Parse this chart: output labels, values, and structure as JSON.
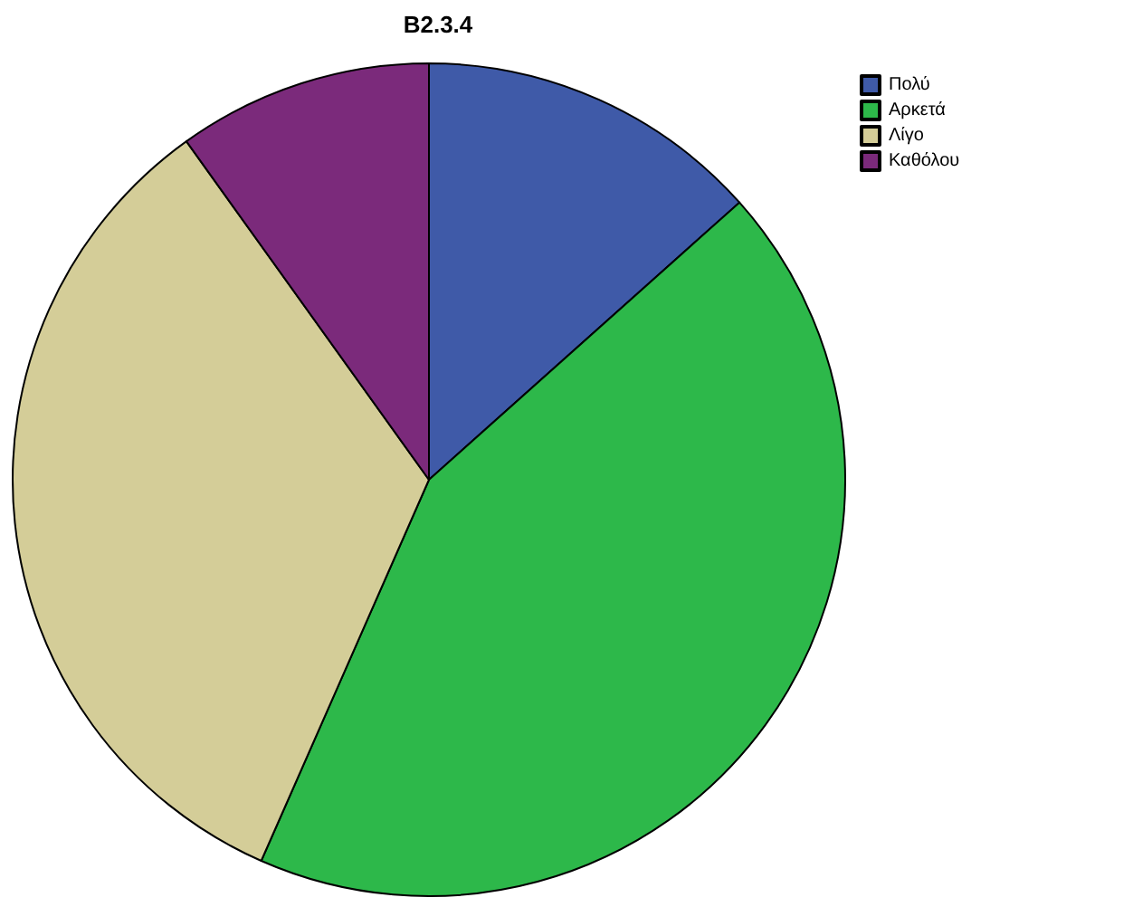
{
  "chart_data": {
    "type": "pie",
    "title": "B2.3.4",
    "categories": [
      "Πολύ",
      "Αρκετά",
      "Λίγο",
      "Καθόλου"
    ],
    "values": [
      13.4,
      43.2,
      33.5,
      9.9
    ],
    "colors": [
      "#3f5aa8",
      "#2db84a",
      "#d4cd98",
      "#7b2a7b"
    ],
    "legend": "top right"
  }
}
